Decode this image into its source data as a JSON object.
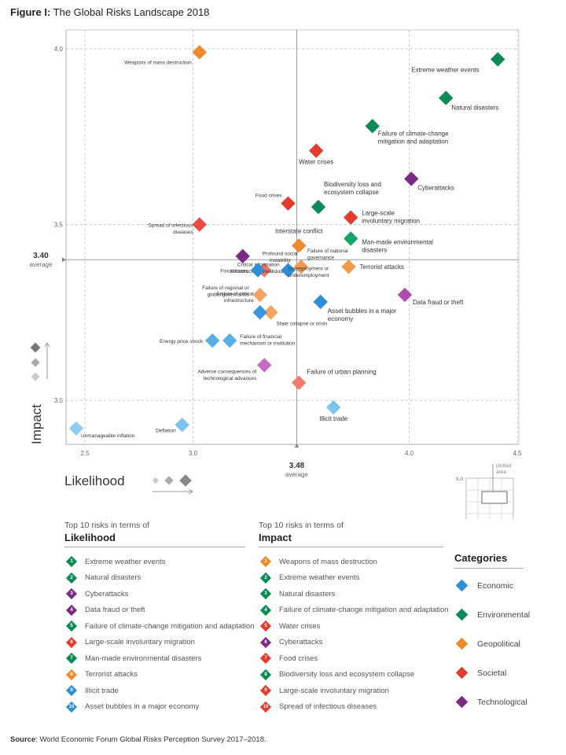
{
  "figure": {
    "label": "Figure I:",
    "title": "The Global Risks Landscape 2018"
  },
  "chart_data": {
    "type": "scatter",
    "xlabel": "Likelihood",
    "ylabel": "Impact",
    "xlim": [
      2.5,
      4.5
    ],
    "ylim": [
      2.9,
      4.0
    ],
    "x_ticks": [
      "2.5",
      "3.0",
      "4.0",
      "4.5"
    ],
    "y_ticks": [
      "4.0",
      "3.5",
      "3.0"
    ],
    "x_average": {
      "value": "3.48",
      "label": "average",
      "x": 3.48
    },
    "y_average": {
      "value": "3.40",
      "label": "average",
      "y": 3.4
    },
    "colors": {
      "Economic": "#2e8fd6",
      "Environmental": "#0e8a57",
      "Geopolitical": "#ef8a2c",
      "Societal": "#e33b2e",
      "Technological": "#7b2b86"
    },
    "points": [
      {
        "label": "Extreme weather events",
        "x": 4.41,
        "y": 3.97,
        "category": "Environmental",
        "shade": "#0e8a57"
      },
      {
        "label": "Natural disasters",
        "x": 4.17,
        "y": 3.86,
        "category": "Environmental",
        "shade": "#0e8a57"
      },
      {
        "label": "Failure of climate-change mitigation and adaptation",
        "x": 3.83,
        "y": 3.78,
        "category": "Environmental",
        "shade": "#0e8a57"
      },
      {
        "label": "Biodiversity loss and ecosystem collapse",
        "x": 3.58,
        "y": 3.55,
        "category": "Environmental",
        "shade": "#0e8a57"
      },
      {
        "label": "Man-made environmental disasters",
        "x": 3.73,
        "y": 3.46,
        "category": "Environmental",
        "shade": "#13a36b"
      },
      {
        "label": "Water crises",
        "x": 3.57,
        "y": 3.71,
        "category": "Societal",
        "shade": "#e33b2e"
      },
      {
        "label": "Food crises",
        "x": 3.44,
        "y": 3.56,
        "category": "Societal",
        "shade": "#e33b2e"
      },
      {
        "label": "Large-scale involuntary migration",
        "x": 3.73,
        "y": 3.52,
        "category": "Societal",
        "shade": "#e33b2e"
      },
      {
        "label": "Spread of infectious diseases",
        "x": 3.03,
        "y": 3.5,
        "category": "Societal",
        "shade": "#e84d3f"
      },
      {
        "label": "Profound social instability",
        "x": 3.33,
        "y": 3.37,
        "category": "Societal",
        "shade": "#f07366"
      },
      {
        "label": "Failure of urban planning",
        "x": 3.49,
        "y": 3.05,
        "category": "Societal",
        "shade": "#f37a6c"
      },
      {
        "label": "Weapons of mass destruction",
        "x": 3.03,
        "y": 3.99,
        "category": "Geopolitical",
        "shade": "#ef8a2c"
      },
      {
        "label": "Interstate conflict",
        "x": 3.49,
        "y": 3.44,
        "category": "Geopolitical",
        "shade": "#ef8a2c"
      },
      {
        "label": "Failure of national governance",
        "x": 3.5,
        "y": 3.38,
        "category": "Geopolitical",
        "shade": "#f09a50"
      },
      {
        "label": "Terrorist attacks",
        "x": 3.72,
        "y": 3.38,
        "category": "Geopolitical",
        "shade": "#f09a50"
      },
      {
        "label": "Failure of regional or global governance",
        "x": 3.31,
        "y": 3.3,
        "category": "Geopolitical",
        "shade": "#f2a463"
      },
      {
        "label": "State collapse or crisis",
        "x": 3.36,
        "y": 3.25,
        "category": "Geopolitical",
        "shade": "#f2a463"
      },
      {
        "label": "Cyberattacks",
        "x": 4.01,
        "y": 3.63,
        "category": "Technological",
        "shade": "#7b2b86"
      },
      {
        "label": "Data fraud or theft",
        "x": 3.98,
        "y": 3.3,
        "category": "Technological",
        "shade": "#b04bb0"
      },
      {
        "label": "Critical information infrastructure breakdown",
        "x": 3.23,
        "y": 3.41,
        "category": "Technological",
        "shade": "#7b2b86"
      },
      {
        "label": "Adverse consequences of technological advances",
        "x": 3.33,
        "y": 3.1,
        "category": "Technological",
        "shade": "#c76bc6"
      },
      {
        "label": "Fiscal crises",
        "x": 3.3,
        "y": 3.37,
        "category": "Economic",
        "shade": "#2e8fd6"
      },
      {
        "label": "Unemployment or underemployment",
        "x": 3.44,
        "y": 3.37,
        "category": "Economic",
        "shade": "#2e8fd6"
      },
      {
        "label": "Asset bubbles in a major economy",
        "x": 3.59,
        "y": 3.28,
        "category": "Economic",
        "shade": "#2e8fd6"
      },
      {
        "label": "Failure of critical infrastructure",
        "x": 3.31,
        "y": 3.25,
        "category": "Economic",
        "shade": "#3b98dc"
      },
      {
        "label": "Failure of financial mechanism or institution",
        "x": 3.17,
        "y": 3.17,
        "category": "Economic",
        "shade": "#5aaee6"
      },
      {
        "label": "Energy price shock",
        "x": 3.09,
        "y": 3.17,
        "category": "Economic",
        "shade": "#5aaee6"
      },
      {
        "label": "Illicit trade",
        "x": 3.65,
        "y": 2.98,
        "category": "Economic",
        "shade": "#7cc3ee"
      },
      {
        "label": "Deflation",
        "x": 2.95,
        "y": 2.93,
        "category": "Economic",
        "shade": "#7cc3ee"
      },
      {
        "label": "Unmanageable inflation",
        "x": 2.46,
        "y": 2.92,
        "category": "Economic",
        "shade": "#8fcdf2"
      }
    ]
  },
  "inset": {
    "top_label": "5.0",
    "bottom_left": "1.0",
    "bottom_right": "5.0",
    "note_line1": "plotted",
    "note_line2": "area"
  },
  "likelihood_list": {
    "heading": "Top 10 risks in terms of",
    "title": "Likelihood",
    "items": [
      {
        "n": "1",
        "label": "Extreme weather events",
        "color": "#0e8a57"
      },
      {
        "n": "2",
        "label": "Natural disasters",
        "color": "#0e8a57"
      },
      {
        "n": "3",
        "label": "Cyberattacks",
        "color": "#7b2b86"
      },
      {
        "n": "4",
        "label": "Data fraud or theft",
        "color": "#7b2b86"
      },
      {
        "n": "5",
        "label": "Failure of climate-change mitigation and adaptation",
        "color": "#0e8a57"
      },
      {
        "n": "6",
        "label": "Large-scale involuntary migration",
        "color": "#e33b2e"
      },
      {
        "n": "7",
        "label": "Man-made environmental disasters",
        "color": "#0e8a57"
      },
      {
        "n": "8",
        "label": "Terrorist attacks",
        "color": "#ef8a2c"
      },
      {
        "n": "9",
        "label": "Illicit trade",
        "color": "#2e8fd6"
      },
      {
        "n": "10",
        "label": "Asset bubbles in a major economy",
        "color": "#2e8fd6"
      }
    ]
  },
  "impact_list": {
    "heading": "Top 10 risks in terms of",
    "title": "Impact",
    "items": [
      {
        "n": "1",
        "label": "Weapons of mass destruction",
        "color": "#ef8a2c"
      },
      {
        "n": "2",
        "label": "Extreme weather events",
        "color": "#0e8a57"
      },
      {
        "n": "3",
        "label": "Natural disasters",
        "color": "#0e8a57"
      },
      {
        "n": "4",
        "label": "Failure of climate-change mitigation and adaptation",
        "color": "#0e8a57"
      },
      {
        "n": "5",
        "label": "Water crises",
        "color": "#e33b2e"
      },
      {
        "n": "6",
        "label": "Cyberattacks",
        "color": "#7b2b86"
      },
      {
        "n": "7",
        "label": "Food crises",
        "color": "#e33b2e"
      },
      {
        "n": "8",
        "label": "Biodiversity loss and ecosystem collapse",
        "color": "#0e8a57"
      },
      {
        "n": "9",
        "label": "Large-scale involuntary migration",
        "color": "#e33b2e"
      },
      {
        "n": "10",
        "label": "Spread of infectious diseases",
        "color": "#e33b2e"
      }
    ]
  },
  "categories": {
    "title": "Categories",
    "items": [
      {
        "label": "Economic",
        "color": "#2e8fd6"
      },
      {
        "label": "Environmental",
        "color": "#0e8a57"
      },
      {
        "label": "Geopolitical",
        "color": "#ef8a2c"
      },
      {
        "label": "Societal",
        "color": "#e33b2e"
      },
      {
        "label": "Technological",
        "color": "#7b2b86"
      }
    ]
  },
  "source": {
    "label": "Source",
    "text": ": World Economic Forum Global Risks Perception Survey 2017–2018."
  }
}
